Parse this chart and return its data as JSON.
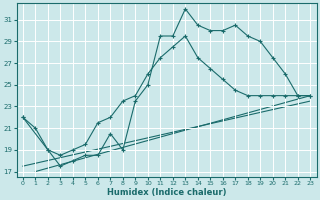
{
  "xlabel": "Humidex (Indice chaleur)",
  "bg_color": "#cce8ea",
  "grid_color": "#ffffff",
  "line_color": "#1a6b6b",
  "xlim": [
    -0.5,
    23.5
  ],
  "ylim": [
    16.5,
    32.5
  ],
  "xticks": [
    0,
    1,
    2,
    3,
    4,
    5,
    6,
    7,
    8,
    9,
    10,
    11,
    12,
    13,
    14,
    15,
    16,
    17,
    18,
    19,
    20,
    21,
    22,
    23
  ],
  "yticks": [
    17,
    19,
    21,
    23,
    25,
    27,
    29,
    31
  ],
  "series1_x": [
    0,
    1,
    2,
    3,
    4,
    5,
    6,
    7,
    8,
    9,
    10,
    11,
    12,
    13,
    14,
    15,
    16,
    17,
    18,
    19,
    20,
    21,
    22,
    23
  ],
  "series1_y": [
    22.0,
    21.0,
    19.0,
    17.5,
    18.0,
    18.5,
    18.5,
    20.5,
    19.0,
    23.5,
    25.0,
    29.5,
    29.5,
    32.0,
    30.5,
    30.0,
    30.0,
    30.5,
    29.5,
    29.0,
    27.5,
    26.0,
    24.0,
    24.0
  ],
  "series2_x": [
    0,
    2,
    3,
    4,
    5,
    6,
    7,
    8,
    9,
    10,
    11,
    12,
    13,
    14,
    15,
    16,
    17,
    18,
    19,
    20,
    21,
    22,
    23
  ],
  "series2_y": [
    22.0,
    19.0,
    18.5,
    19.0,
    19.5,
    21.5,
    22.0,
    23.5,
    24.0,
    26.0,
    27.5,
    28.5,
    29.5,
    27.5,
    26.5,
    25.5,
    24.5,
    24.0,
    24.0,
    24.0,
    24.0,
    24.0,
    24.0
  ],
  "series3_x": [
    1,
    23
  ],
  "series3_y": [
    17.0,
    24.0
  ],
  "series4_x": [
    0,
    23
  ],
  "series4_y": [
    17.5,
    23.5
  ]
}
